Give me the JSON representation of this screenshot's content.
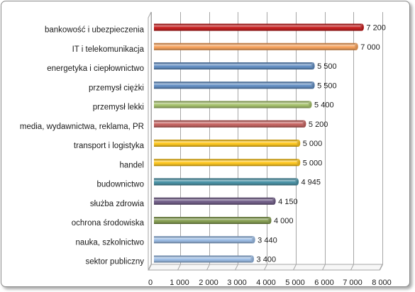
{
  "chart_data": {
    "type": "bar",
    "orientation": "horizontal",
    "categories": [
      "bankowość i ubezpieczenia",
      "IT i telekomunikacja",
      "energetyka i ciepłownictwo",
      "przemysł ciężki",
      "przemysł lekki",
      "media, wydawnictwa, reklama, PR",
      "transport i logistyka",
      "handel",
      "budownictwo",
      "służba zdrowia",
      "ochrona środowiska",
      "nauka, szkolnictwo",
      "sektor publiczny"
    ],
    "values": [
      7200,
      7000,
      5500,
      5500,
      5400,
      5200,
      5000,
      5000,
      4945,
      4150,
      4000,
      3440,
      3400
    ],
    "value_labels": [
      "7 200",
      "7 000",
      "5 500",
      "5 500",
      "5 400",
      "5 200",
      "5 000",
      "5 000",
      "4 945",
      "4 150",
      "4 000",
      "3 440",
      "3 400"
    ],
    "bar_colors": [
      "#C00000",
      "#F79646",
      "#4F81BD",
      "#4F81BD",
      "#9BBB59",
      "#C0504D",
      "#FFC000",
      "#FFC000",
      "#31859C",
      "#604A7B",
      "#77933C",
      "#8EB4E3",
      "#8EB4E3"
    ],
    "xlim": [
      0,
      8000
    ],
    "x_ticks": [
      0,
      1000,
      2000,
      3000,
      4000,
      5000,
      6000,
      7000,
      8000
    ],
    "x_tick_labels": [
      "0",
      "1 000",
      "2 000",
      "3 000",
      "4 000",
      "5 000",
      "6 000",
      "7 000",
      "8 000"
    ],
    "grid": true
  }
}
